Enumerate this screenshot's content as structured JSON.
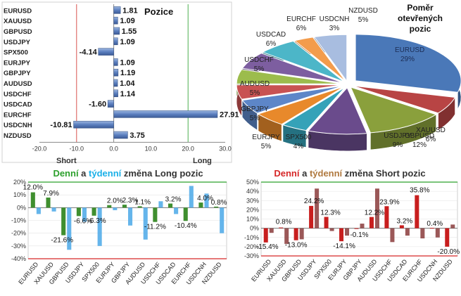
{
  "chart_data": [
    {
      "type": "bar",
      "orientation": "horizontal",
      "title": "Pozice",
      "categories": [
        "EURUSD",
        "XAUUSD",
        "GBPUSD",
        "USDJPY",
        "SPX500",
        "EURJPY",
        "GBPJPY",
        "AUDUSD",
        "USDCHF",
        "USDCAD",
        "EURCHF",
        "USDCNH",
        "NZDUSD"
      ],
      "values": [
        1.81,
        1.09,
        1.55,
        1.09,
        -4.14,
        1.09,
        1.19,
        1.04,
        1.14,
        -1.6,
        27.91,
        -10.81,
        3.75
      ],
      "value_labels": [
        "1.81",
        "1.09",
        "1.55",
        "1.09",
        "-4.14",
        "1.09",
        "1.19",
        "1.04",
        "1.14",
        "-1.60",
        "27.91",
        "-10.81",
        "3.75"
      ],
      "xlim": [
        -20,
        30
      ],
      "x_ticks": [
        "-20.0",
        "-10.0",
        "0.0",
        "10.0",
        "20.0",
        "30.0"
      ],
      "annotations": [
        "Short",
        "Long"
      ],
      "colors": {
        "bar": "#5b7fbf",
        "short_line": "#d9534f",
        "long_line": "#4caf50"
      }
    },
    {
      "type": "pie",
      "title_lines": [
        "Poměr",
        "otevřených",
        "pozic"
      ],
      "labels": [
        "EURUSD",
        "XAUUSD",
        "GBPUSD",
        "USDJPY",
        "SPX500",
        "EURJPY",
        "GBPJPY",
        "AUDUSD",
        "USDCHF",
        "USDCAD",
        "EURCHF",
        "USDCNH",
        "NZDUSD"
      ],
      "values": [
        29,
        6,
        12,
        9,
        4,
        5,
        5,
        5,
        5,
        6,
        6,
        3,
        5
      ],
      "value_labels": [
        "29%",
        "6%",
        "12%",
        "9%",
        "4%",
        "5%",
        "5%",
        "5%",
        "5%",
        "6%",
        "6%",
        "3%",
        "5%"
      ],
      "colors": [
        "#4a78b8",
        "#b84444",
        "#8aa03c",
        "#6a4b8c",
        "#35a2b8",
        "#e8892b",
        "#5d86c8",
        "#c85252",
        "#9cbc4c",
        "#7d5ea0",
        "#4cb6c8",
        "#f39c4c",
        "#a8bde0"
      ]
    },
    {
      "type": "bar",
      "title_parts": [
        "Denní",
        " a ",
        "týdenní",
        " změna Long pozic"
      ],
      "title_colors": [
        "#2ca02c",
        "#333333",
        "#1ab0e8",
        "#333333"
      ],
      "categories": [
        "EURUSD",
        "XAUUSD",
        "GBPUSD",
        "USDJPY",
        "SPX500",
        "EURJPY",
        "GBPJPY",
        "AUDUSD",
        "USDCHF",
        "USDCAD",
        "EURCHF",
        "USDCNH",
        "NZDUSD"
      ],
      "series": [
        {
          "name": "Denní",
          "values": [
            12.0,
            7.9,
            -21.6,
            -6.6,
            -6.3,
            2.0,
            2.3,
            1.1,
            -11.2,
            3.2,
            -10.4,
            4.0,
            0.8
          ]
        },
        {
          "name": "Týdenní",
          "values": [
            -5,
            -3,
            -33,
            -11,
            -30,
            -2,
            -14,
            -25,
            5,
            -5,
            17,
            11,
            -20
          ]
        }
      ],
      "data_labels": [
        {
          "series": 0,
          "index": 0,
          "text": "12.0%"
        },
        {
          "series": 0,
          "index": 1,
          "text": "7.9%"
        },
        {
          "series": 0,
          "index": 2,
          "text": "-21.6%"
        },
        {
          "series": 0,
          "index": 3,
          "text": "-6.6%"
        },
        {
          "series": 0,
          "index": 4,
          "text": "-6.3%"
        },
        {
          "series": 0,
          "index": 5,
          "text": "2.0%"
        },
        {
          "series": 0,
          "index": 6,
          "text": "2.3%"
        },
        {
          "series": 0,
          "index": 7,
          "text": "1.1%"
        },
        {
          "series": 0,
          "index": 8,
          "text": "-11.2%"
        },
        {
          "series": 0,
          "index": 9,
          "text": "3.2%"
        },
        {
          "series": 0,
          "index": 10,
          "text": "-10.4%"
        },
        {
          "series": 0,
          "index": 11,
          "text": "4.0%"
        },
        {
          "series": 0,
          "index": 12,
          "text": "0.8%"
        }
      ],
      "ylim": [
        -40,
        20
      ],
      "y_ticks": [
        "20%",
        "10%",
        "0%",
        "-10%",
        "-20%",
        "-30%",
        "-40%"
      ],
      "colors": {
        "daily": "#3f8f2f",
        "weekly": "#4aa8e8"
      }
    },
    {
      "type": "bar",
      "title_parts": [
        "Denní",
        " a ",
        "týdenní",
        " změna Short pozic"
      ],
      "title_colors": [
        "#d62728",
        "#333333",
        "#b0793f",
        "#333333"
      ],
      "categories": [
        "EURUSD",
        "XAUUSD",
        "GBPUSD",
        "USDJPY",
        "SPX500",
        "EURJPY",
        "GBPJPY",
        "AUDUSD",
        "USDCHF",
        "USDCAD",
        "EURCHF",
        "USDCNH",
        "NZDUSD"
      ],
      "series": [
        {
          "name": "Denní",
          "values": [
            -15.4,
            0.8,
            -13.0,
            24.2,
            12.3,
            -14.1,
            -0.1,
            12.2,
            23.9,
            3.2,
            35.8,
            0.4,
            -20.0
          ]
        },
        {
          "name": "Týdenní",
          "values": [
            -5,
            -17,
            -12,
            43,
            -3,
            -8,
            5,
            43,
            -15,
            -8,
            -11,
            -10,
            4
          ]
        }
      ],
      "data_labels": [
        {
          "series": 0,
          "index": 0,
          "text": "-15.4%"
        },
        {
          "series": 0,
          "index": 1,
          "text": "0.8%"
        },
        {
          "series": 0,
          "index": 2,
          "text": "-13.0%"
        },
        {
          "series": 0,
          "index": 3,
          "text": "24.2%"
        },
        {
          "series": 0,
          "index": 4,
          "text": "12.3%"
        },
        {
          "series": 0,
          "index": 5,
          "text": "-14.1%"
        },
        {
          "series": 0,
          "index": 6,
          "text": "-0.1%"
        },
        {
          "series": 0,
          "index": 7,
          "text": "12.2%"
        },
        {
          "series": 0,
          "index": 8,
          "text": "23.9%"
        },
        {
          "series": 0,
          "index": 9,
          "text": "3.2%"
        },
        {
          "series": 0,
          "index": 10,
          "text": "35.8%"
        },
        {
          "series": 0,
          "index": 11,
          "text": "0.4%"
        },
        {
          "series": 0,
          "index": 12,
          "text": "-20.0%"
        }
      ],
      "ylim": [
        -30,
        50
      ],
      "y_ticks": [
        "50%",
        "40%",
        "30%",
        "20%",
        "10%",
        "0%",
        "-10%",
        "-20%",
        "-30%"
      ],
      "colors": {
        "daily": "#c81e1e",
        "weekly": "#8a3b3b"
      }
    }
  ]
}
